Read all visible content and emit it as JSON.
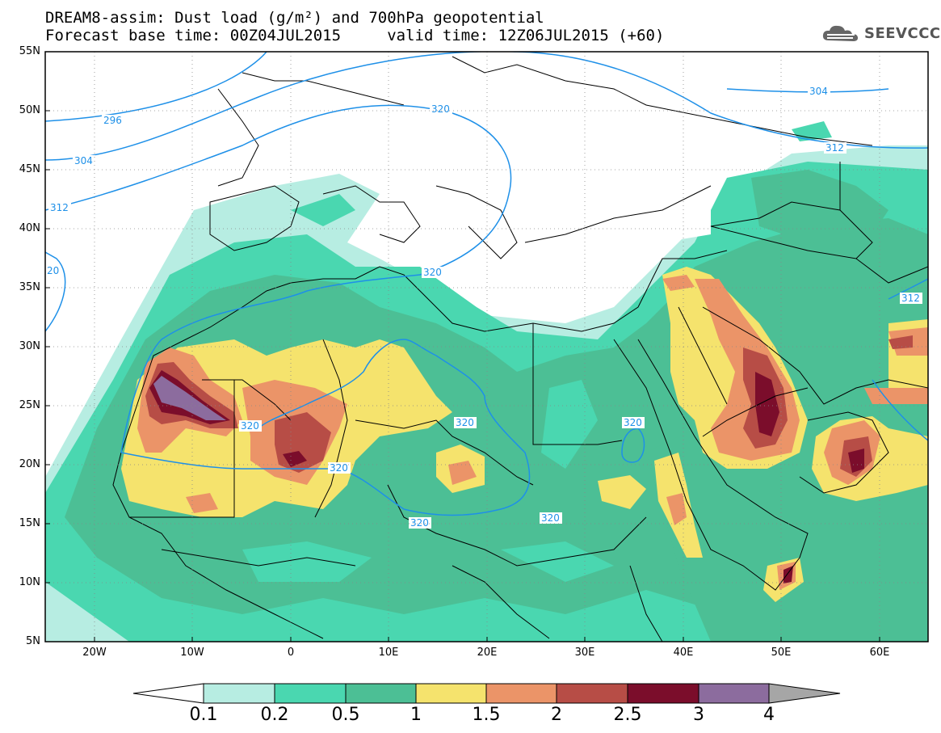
{
  "header": {
    "line1": "DREAM8-assim: Dust load (g/m²) and 700hPa geopotential",
    "line2": "Forecast base time: 00Z04JUL2015     valid time: 12Z06JUL2015 (+60)",
    "logo_text": "SEEVCCC",
    "logo_icon": "cloud-icon"
  },
  "map": {
    "lat_labels": [
      "55N",
      "50N",
      "45N",
      "40N",
      "35N",
      "30N",
      "25N",
      "20N",
      "15N",
      "10N",
      "5N"
    ],
    "lon_labels": [
      "20W",
      "10W",
      "0",
      "10E",
      "20E",
      "30E",
      "40E",
      "50E",
      "60E"
    ],
    "contour_labels": [
      "296",
      "304",
      "312",
      "320",
      "320",
      "320",
      "320",
      "320",
      "320",
      "320",
      "320",
      "312",
      "304",
      "312",
      "20"
    ],
    "colors": {
      "contour": "#1e90e8",
      "coast": "#000000"
    }
  },
  "colorbar": {
    "labels": [
      "0.1",
      "0.2",
      "0.5",
      "1",
      "1.5",
      "2",
      "2.5",
      "3",
      "4"
    ],
    "colors": [
      "#b7ede2",
      "#4ad7b0",
      "#4cbf95",
      "#f5e36d",
      "#eb9468",
      "#b74d46",
      "#7b0d2b",
      "#8c6c9e",
      "#a6a6a6"
    ]
  },
  "dust_levels_gm2": [
    0.1,
    0.2,
    0.5,
    1,
    1.5,
    2,
    2.5,
    3,
    4
  ]
}
